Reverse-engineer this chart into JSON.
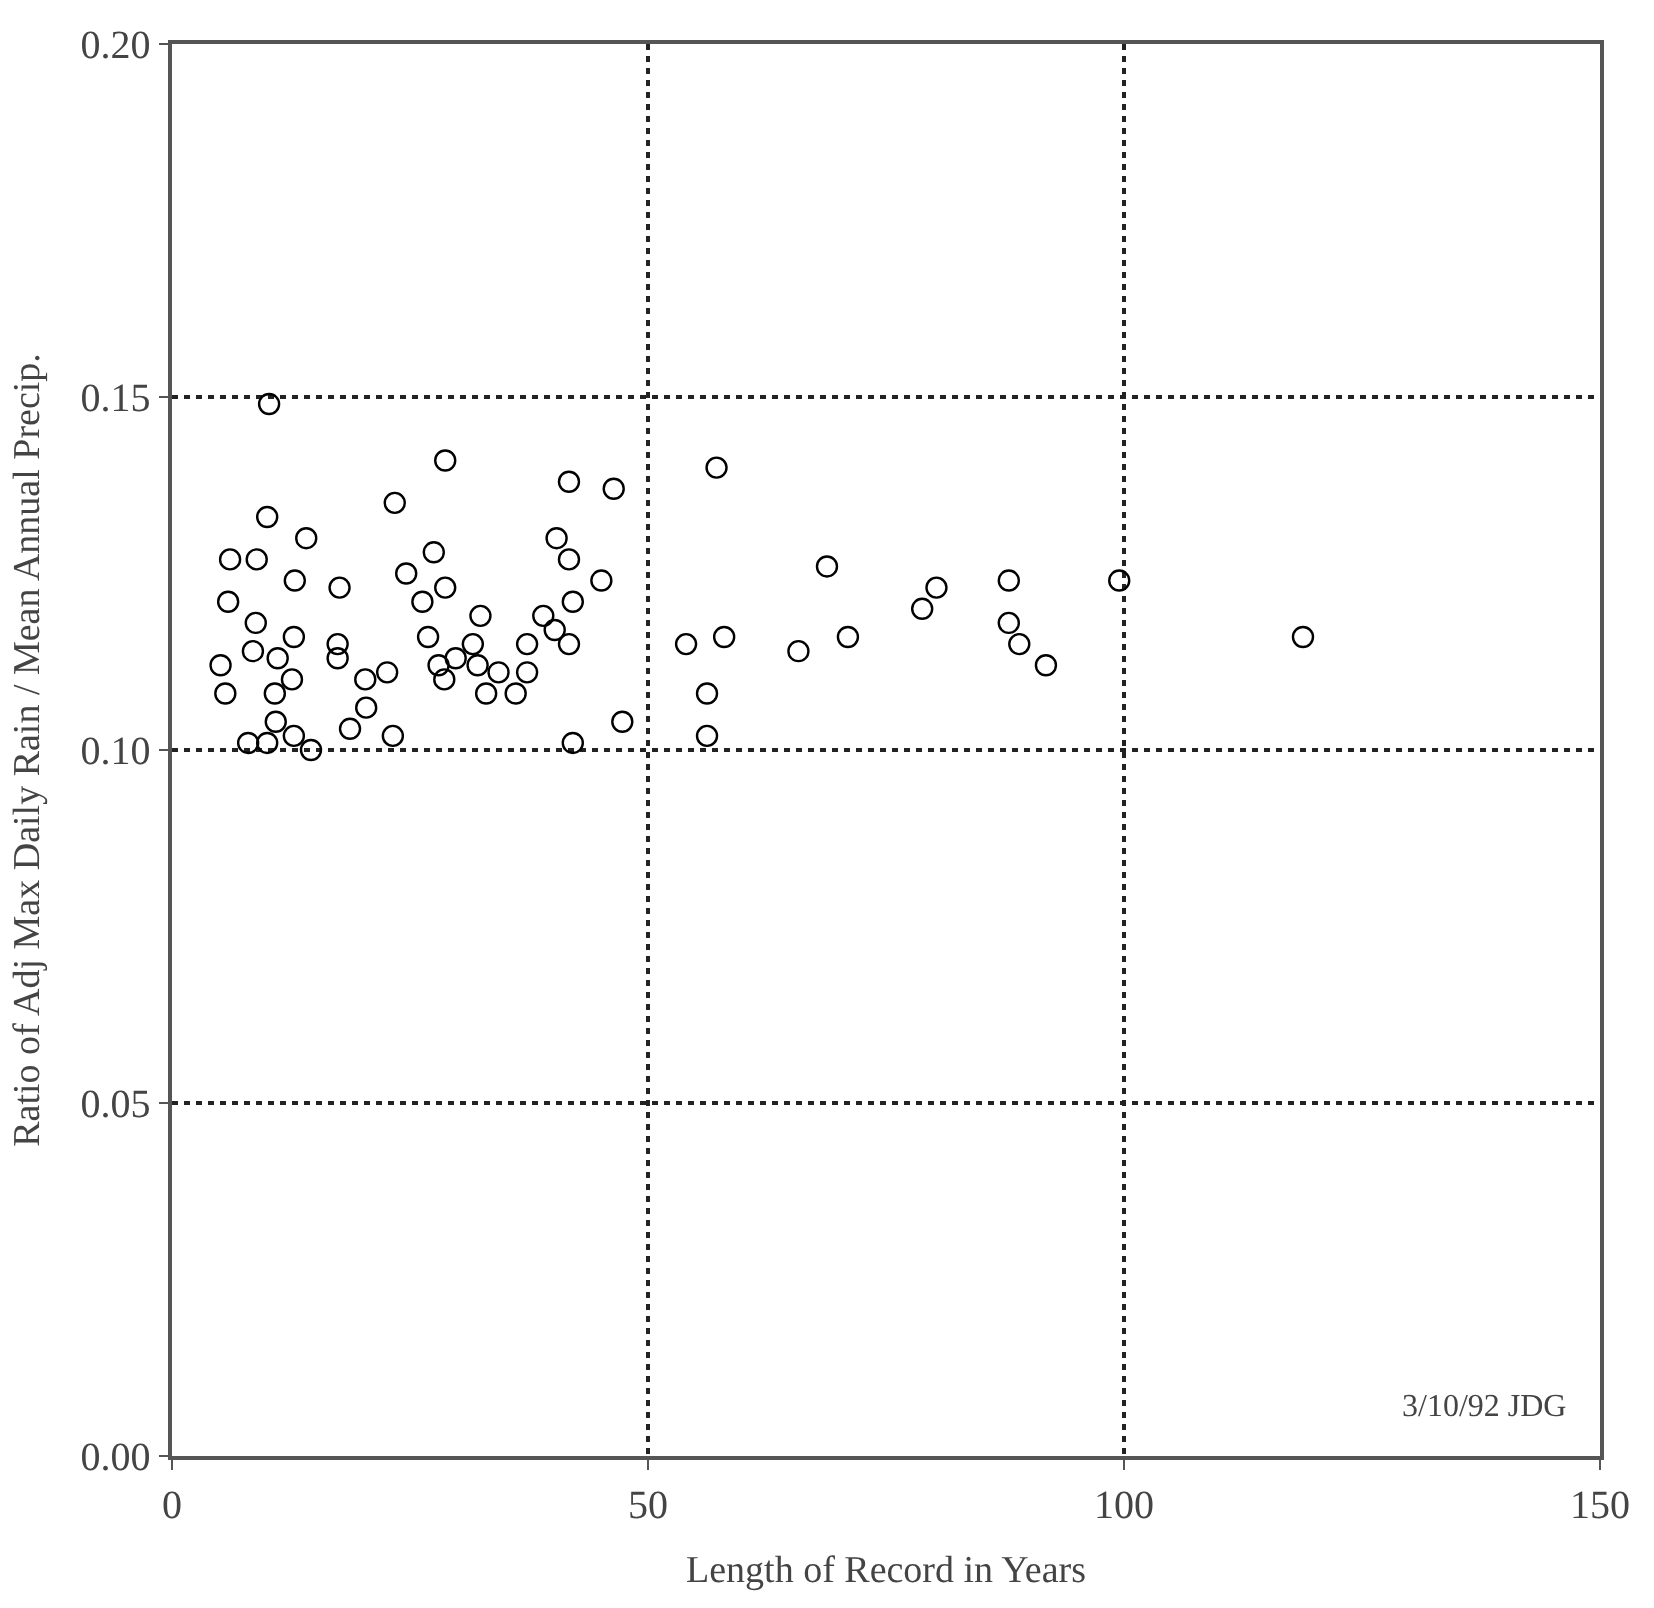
{
  "chart_data": {
    "type": "scatter",
    "xlabel": "Length of Record in Years",
    "ylabel": "Ratio of Adj Max Daily Rain / Mean Annual Precip.",
    "annotations": [
      "3/10/92 JDG"
    ],
    "xlim": [
      0,
      150
    ],
    "xticks": [
      0,
      50,
      100,
      150
    ],
    "ylim": [
      0,
      0.2
    ],
    "yticks": [
      {
        "value": 0,
        "label": "0.00"
      },
      {
        "value": 0.05,
        "label": "0.05"
      },
      {
        "value": 0.1,
        "label": "0.10"
      },
      {
        "value": 0.15,
        "label": "0.15"
      },
      {
        "value": 0.2,
        "label": "0.20"
      }
    ],
    "grid": true,
    "marker": "circle",
    "series": [
      {
        "color": "#000000",
        "x": [
          10.2,
          28.7,
          41.7,
          46.4,
          23.4,
          10,
          14.1,
          40.4,
          6.1,
          8.9,
          27.5,
          41.7,
          12.9,
          24.6,
          17.6,
          28.7,
          45.1,
          5.9,
          42.1,
          26.3,
          8.8,
          32.4,
          39,
          12.8,
          26.9,
          40.2,
          8.5,
          11.1,
          17.4,
          17.4,
          41.7,
          22.6,
          28,
          29.8,
          31.6,
          37.3,
          5.1,
          5.6,
          12.6,
          10.8,
          28.6,
          32.1,
          33,
          34.3,
          36.1,
          37.3,
          20.3,
          20.4,
          10.9,
          18.7,
          23.2,
          8,
          10,
          12.8,
          14.6,
          42.1,
          47.3,
          57.2,
          68.8,
          80.3,
          78.8,
          87.9,
          87.9,
          89,
          91.8,
          99.5,
          118.8,
          54,
          58,
          65.8,
          71,
          56.2,
          56.2
        ],
        "values": [
          0.149,
          0.141,
          0.138,
          0.137,
          0.135,
          0.133,
          0.13,
          0.13,
          0.127,
          0.127,
          0.128,
          0.127,
          0.124,
          0.125,
          0.123,
          0.123,
          0.124,
          0.121,
          0.121,
          0.121,
          0.118,
          0.119,
          0.119,
          0.116,
          0.116,
          0.117,
          0.114,
          0.113,
          0.115,
          0.113,
          0.115,
          0.111,
          0.112,
          0.113,
          0.115,
          0.115,
          0.112,
          0.108,
          0.11,
          0.108,
          0.11,
          0.112,
          0.108,
          0.111,
          0.108,
          0.111,
          0.11,
          0.106,
          0.104,
          0.103,
          0.102,
          0.101,
          0.101,
          0.102,
          0.1,
          0.101,
          0.104,
          0.14,
          0.126,
          0.123,
          0.12,
          0.124,
          0.118,
          0.115,
          0.112,
          0.124,
          0.116,
          0.115,
          0.116,
          0.114,
          0.116,
          0.108,
          0.102
        ]
      }
    ]
  }
}
